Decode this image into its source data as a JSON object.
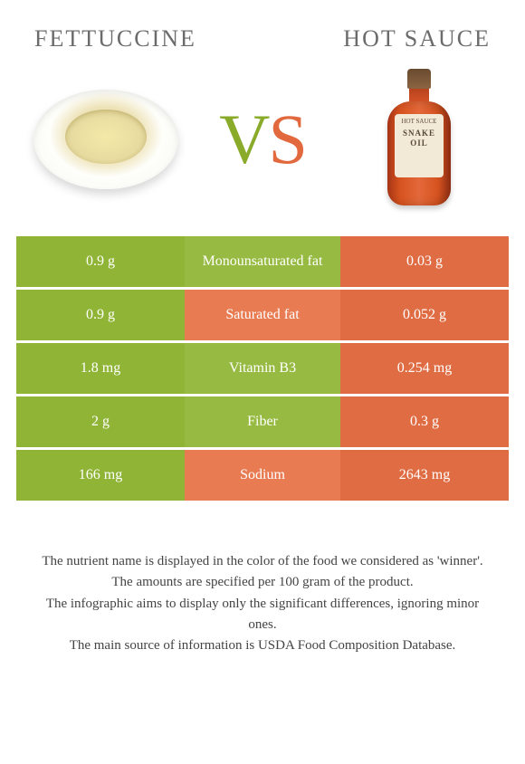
{
  "left_title": "FETTUCCINE",
  "right_title": "HOT SAUCE",
  "vs": {
    "v": "V",
    "s": "S"
  },
  "colors": {
    "green": "#8fb436",
    "green_mid": "#97bb42",
    "orange": "#e06c43",
    "orange_mid": "#e87b52",
    "background": "#ffffff",
    "title_color": "#6b6b6b"
  },
  "rows": [
    {
      "left": "0.9 g",
      "mid": "Monounsaturated fat",
      "right": "0.03 g",
      "winner": "left"
    },
    {
      "left": "0.9 g",
      "mid": "Saturated fat",
      "right": "0.052 g",
      "winner": "right"
    },
    {
      "left": "1.8 mg",
      "mid": "Vitamin B3",
      "right": "0.254 mg",
      "winner": "left"
    },
    {
      "left": "2 g",
      "mid": "Fiber",
      "right": "0.3 g",
      "winner": "left"
    },
    {
      "left": "166 mg",
      "mid": "Sodium",
      "right": "2643 mg",
      "winner": "right"
    }
  ],
  "footer": {
    "l1": "The nutrient name is displayed in the color of the food we considered as 'winner'.",
    "l2": "The amounts are specified per 100 gram of the product.",
    "l3": "The infographic aims to display only the significant differences, ignoring minor ones.",
    "l4": "The main source of information is USDA Food Composition Database."
  },
  "bottle_label": {
    "small": "HOT SAUCE",
    "big": "SNAKE OIL"
  }
}
